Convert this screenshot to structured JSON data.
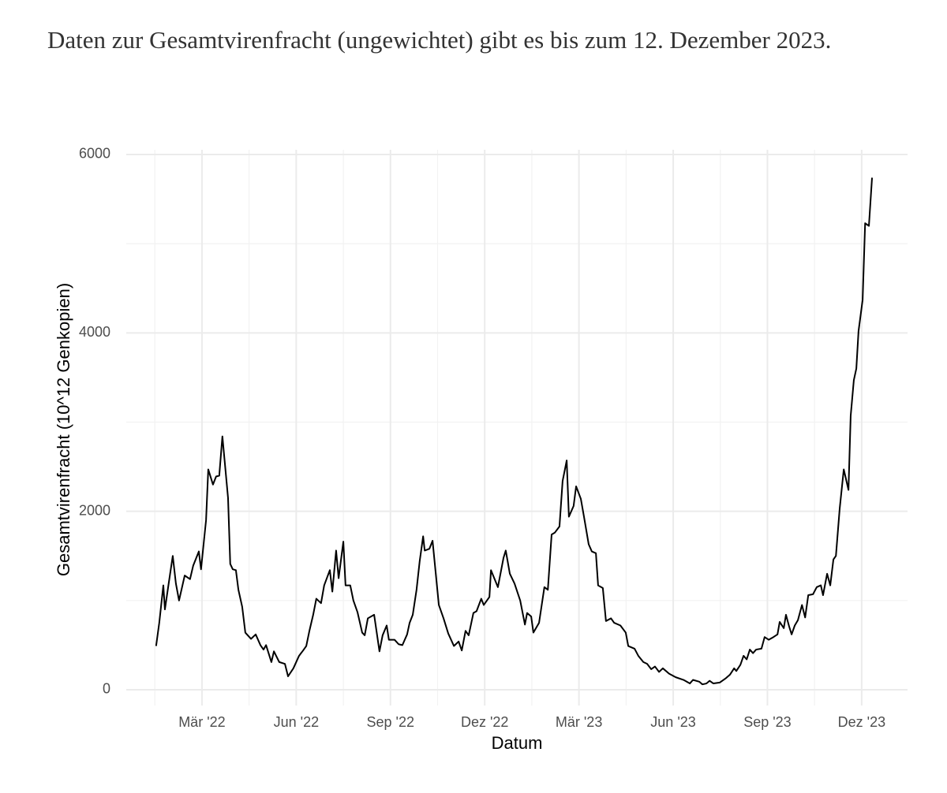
{
  "paragraph": "Daten zur Gesamtvirenfracht (ungewichtet) gibt es bis zum 12. Dezember 2023.",
  "chart_data": {
    "type": "line",
    "x_label": "Datum",
    "y_label": "Gesamtvirenfracht (10^12 Genkopien)",
    "color": "#000000",
    "grid": true,
    "xlim": [
      -0.41,
      24.46
    ],
    "ylim": [
      -177,
      6053
    ],
    "xticks": [
      {
        "value": 2,
        "label": "Mär '22"
      },
      {
        "value": 5,
        "label": "Jun '22"
      },
      {
        "value": 8,
        "label": "Sep '22"
      },
      {
        "value": 11,
        "label": "Dez '22"
      },
      {
        "value": 14,
        "label": "Mär '23"
      },
      {
        "value": 17,
        "label": "Jun '23"
      },
      {
        "value": 20,
        "label": "Sep '23"
      },
      {
        "value": 23,
        "label": "Dez '23"
      }
    ],
    "yticks": [
      0,
      2000,
      4000,
      6000
    ],
    "x": [
      0.54,
      0.64,
      0.77,
      0.82,
      0.94,
      1.07,
      1.17,
      1.27,
      1.45,
      1.62,
      1.72,
      1.9,
      1.97,
      2.13,
      2.2,
      2.35,
      2.45,
      2.55,
      2.65,
      2.83,
      2.9,
      2.98,
      3.08,
      3.16,
      3.28,
      3.38,
      3.56,
      3.71,
      3.86,
      3.96,
      4.04,
      4.21,
      4.29,
      4.46,
      4.64,
      4.74,
      4.91,
      5.09,
      5.22,
      5.32,
      5.42,
      5.54,
      5.64,
      5.79,
      5.89,
      6.07,
      6.15,
      6.27,
      6.35,
      6.5,
      6.57,
      6.72,
      6.82,
      6.95,
      7.1,
      7.18,
      7.28,
      7.48,
      7.65,
      7.75,
      7.88,
      7.95,
      8.13,
      8.26,
      8.38,
      8.53,
      8.61,
      8.71,
      8.83,
      8.93,
      9.04,
      9.09,
      9.24,
      9.34,
      9.54,
      9.69,
      9.84,
      10.02,
      10.17,
      10.27,
      10.39,
      10.49,
      10.64,
      10.74,
      10.89,
      10.97,
      11.15,
      11.2,
      11.42,
      11.6,
      11.67,
      11.8,
      11.95,
      12.13,
      12.28,
      12.35,
      12.48,
      12.55,
      12.73,
      12.9,
      13.01,
      13.13,
      13.23,
      13.38,
      13.48,
      13.61,
      13.68,
      13.83,
      13.91,
      14.06,
      14.16,
      14.31,
      14.41,
      14.54,
      14.61,
      14.76,
      14.86,
      15.02,
      15.12,
      15.32,
      15.49,
      15.57,
      15.77,
      15.89,
      16.05,
      16.17,
      16.3,
      16.42,
      16.55,
      16.67,
      16.87,
      17.08,
      17.33,
      17.53,
      17.63,
      17.83,
      17.93,
      18.06,
      18.16,
      18.28,
      18.48,
      18.68,
      18.81,
      18.94,
      19.01,
      19.14,
      19.24,
      19.34,
      19.44,
      19.54,
      19.64,
      19.81,
      19.91,
      20.04,
      20.19,
      20.32,
      20.39,
      20.52,
      20.59,
      20.69,
      20.77,
      20.87,
      20.97,
      21.1,
      21.2,
      21.3,
      21.45,
      21.57,
      21.7,
      21.77,
      21.9,
      22.0,
      22.1,
      22.18,
      22.3,
      22.43,
      22.58,
      22.65,
      22.75,
      22.83,
      22.9,
      23.03,
      23.11,
      23.23,
      23.33
    ],
    "values": [
      490,
      750,
      1170,
      900,
      1190,
      1500,
      1190,
      1000,
      1280,
      1240,
      1390,
      1550,
      1350,
      1900,
      2470,
      2300,
      2390,
      2400,
      2840,
      2150,
      1410,
      1350,
      1340,
      1120,
      930,
      640,
      570,
      620,
      500,
      450,
      500,
      310,
      430,
      310,
      290,
      150,
      240,
      380,
      440,
      490,
      660,
      840,
      1020,
      970,
      1170,
      1340,
      1100,
      1560,
      1250,
      1660,
      1170,
      1170,
      1000,
      870,
      640,
      610,
      800,
      840,
      430,
      610,
      720,
      560,
      560,
      510,
      500,
      620,
      750,
      840,
      1120,
      1440,
      1720,
      1560,
      1580,
      1670,
      950,
      800,
      630,
      490,
      540,
      440,
      660,
      610,
      860,
      880,
      1020,
      950,
      1040,
      1340,
      1150,
      1480,
      1560,
      1300,
      1190,
      1000,
      730,
      860,
      820,
      640,
      750,
      1150,
      1120,
      1740,
      1760,
      1830,
      2340,
      2570,
      1940,
      2060,
      2280,
      2140,
      1940,
      1630,
      1550,
      1530,
      1170,
      1140,
      770,
      800,
      750,
      720,
      640,
      490,
      460,
      380,
      310,
      290,
      230,
      260,
      200,
      240,
      180,
      140,
      110,
      70,
      110,
      90,
      60,
      70,
      100,
      70,
      80,
      130,
      170,
      240,
      210,
      280,
      380,
      340,
      450,
      410,
      450,
      460,
      590,
      560,
      590,
      620,
      760,
      690,
      840,
      710,
      620,
      720,
      780,
      950,
      810,
      1060,
      1070,
      1150,
      1170,
      1060,
      1300,
      1170,
      1460,
      1500,
      2030,
      2470,
      2240,
      3070,
      3470,
      3600,
      4020,
      4370,
      5230,
      5200,
      5740
    ]
  }
}
